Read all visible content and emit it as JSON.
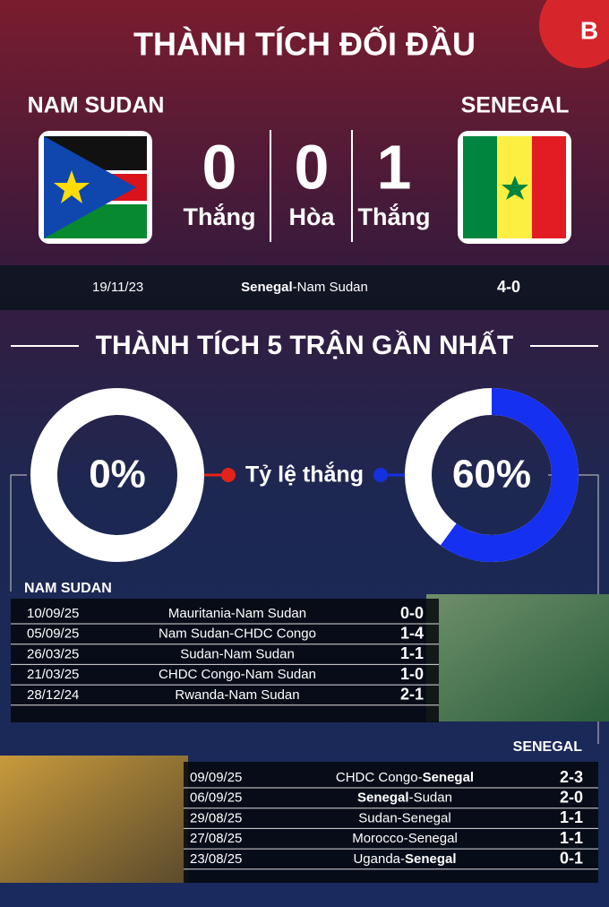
{
  "header": {
    "title": "THÀNH TÍCH ĐỐI ĐẦU",
    "logo": "B"
  },
  "teams": {
    "home": "NAM SUDAN",
    "away": "SENEGAL"
  },
  "record": [
    {
      "count": 0,
      "label": "Thắng"
    },
    {
      "count": 0,
      "label": "Hòa"
    },
    {
      "count": 1,
      "label": "Thắng"
    }
  ],
  "h2h_matches": [
    {
      "date": "19/11/23",
      "match": [
        {
          "text": "Senegal",
          "bold": true
        },
        {
          "text": "-Nam Sudan",
          "bold": false
        }
      ],
      "score": "4-0"
    }
  ],
  "recent_title": "THÀNH TÍCH 5 TRẬN GẦN NHẤT",
  "win_rate": {
    "label": "Tỷ lệ thắng",
    "home": {
      "value": 0,
      "label": "0%"
    },
    "away": {
      "value": 60,
      "label": "60%"
    }
  },
  "recent": {
    "home": {
      "team": "NAM SUDAN",
      "matches": [
        {
          "date": "10/09/25",
          "match": [
            {
              "text": "Mauritania-Nam Sudan",
              "bold": false
            }
          ],
          "score": "0-0"
        },
        {
          "date": "05/09/25",
          "match": [
            {
              "text": "Nam Sudan-CHDC Congo",
              "bold": false
            }
          ],
          "score": "1-4"
        },
        {
          "date": "26/03/25",
          "match": [
            {
              "text": "Sudan-Nam Sudan",
              "bold": false
            }
          ],
          "score": "1-1"
        },
        {
          "date": "21/03/25",
          "match": [
            {
              "text": "CHDC Congo-Nam Sudan",
              "bold": false
            }
          ],
          "score": "1-0"
        },
        {
          "date": "28/12/24",
          "match": [
            {
              "text": "Rwanda-Nam Sudan",
              "bold": false
            }
          ],
          "score": "2-1"
        }
      ]
    },
    "away": {
      "team": "SENEGAL",
      "matches": [
        {
          "date": "09/09/25",
          "match": [
            {
              "text": "CHDC Congo-",
              "bold": false
            },
            {
              "text": "Senegal",
              "bold": true
            }
          ],
          "score": "2-3"
        },
        {
          "date": "06/09/25",
          "match": [
            {
              "text": "Senegal",
              "bold": true
            },
            {
              "text": "-Sudan",
              "bold": false
            }
          ],
          "score": "2-0"
        },
        {
          "date": "29/08/25",
          "match": [
            {
              "text": "Sudan-Senegal",
              "bold": false
            }
          ],
          "score": "1-1"
        },
        {
          "date": "27/08/25",
          "match": [
            {
              "text": "Morocco-Senegal",
              "bold": false
            }
          ],
          "score": "1-1"
        },
        {
          "date": "23/08/25",
          "match": [
            {
              "text": "Uganda-",
              "bold": false
            },
            {
              "text": "Senegal",
              "bold": true
            }
          ],
          "score": "0-1"
        }
      ]
    }
  }
}
